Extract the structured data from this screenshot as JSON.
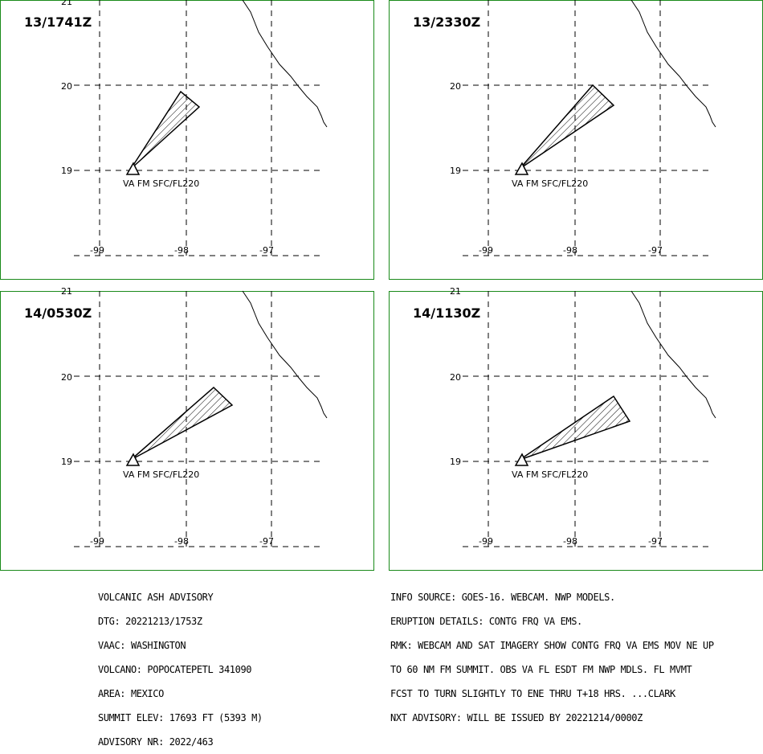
{
  "map": {
    "lat_ticks": [
      "21",
      "20",
      "19"
    ],
    "lon_ticks": [
      "-99",
      "-98",
      "-97"
    ],
    "colors": {
      "frame": "#1a8a1a",
      "grid": "#000000",
      "coast": "#000000",
      "plume_hatch": "#000000"
    },
    "volcano_icon": "triangle-volcano-icon",
    "panels": [
      {
        "time": "13/1741Z",
        "va_label": "VA FM SFC/FL220"
      },
      {
        "time": "13/2330Z",
        "va_label": "VA FM SFC/FL220"
      },
      {
        "time": "14/0530Z",
        "va_label": "VA FM SFC/FL220"
      },
      {
        "time": "14/1130Z",
        "va_label": "VA FM SFC/FL220"
      }
    ]
  },
  "advisory_left": [
    "VOLCANIC ASH ADVISORY",
    "DTG: 20221213/1753Z",
    "VAAC: WASHINGTON",
    "VOLCANO: POPOCATEPETL 341090",
    "AREA: MEXICO",
    "SUMMIT ELEV: 17693 FT (5393 M)",
    "ADVISORY NR: 2022/463"
  ],
  "advisory_right": [
    "INFO SOURCE: GOES-16. WEBCAM. NWP MODELS.",
    "ERUPTION DETAILS: CONTG FRQ VA EMS.",
    "RMK: WEBCAM AND SAT IMAGERY SHOW CONTG FRQ VA EMS MOV NE UP",
    "TO 60 NM FM SUMMIT. OBS VA FL ESDT FM NWP MDLS. FL MVMT",
    "FCST TO TURN SLIGHTLY TO ENE THRU T+18 HRS. ...CLARK",
    "NXT ADVISORY: WILL BE ISSUED BY 20221214/0000Z"
  ]
}
